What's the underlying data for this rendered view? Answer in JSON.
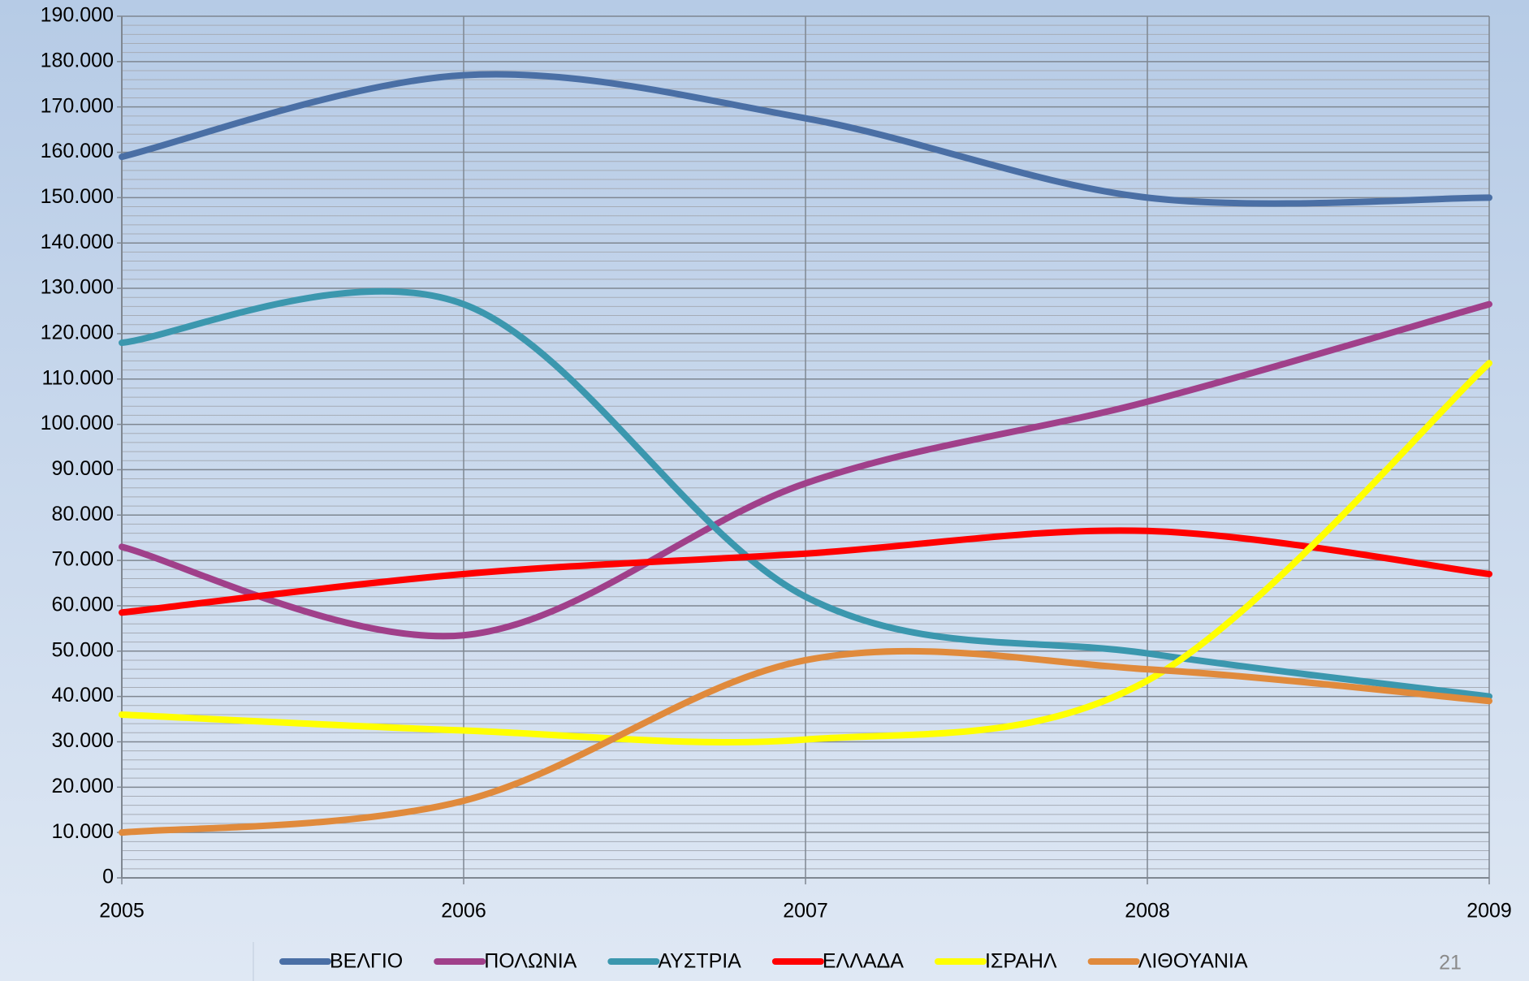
{
  "chart_data": {
    "type": "line",
    "x": [
      2005,
      2006,
      2007,
      2008,
      2009
    ],
    "xlim": [
      2005,
      2009
    ],
    "xticks": [
      2005,
      2006,
      2007,
      2008,
      2009
    ],
    "ylim": [
      0,
      190000
    ],
    "yticks": [
      0,
      {
        "value": 10000,
        "label": "10.000"
      },
      {
        "value": 20000,
        "label": "20.000"
      },
      {
        "value": 30000,
        "label": "30.000"
      },
      {
        "value": 40000,
        "label": "40.000"
      },
      {
        "value": 50000,
        "label": "50.000"
      },
      {
        "value": 60000,
        "label": "60.000"
      },
      {
        "value": 70000,
        "label": "70.000"
      },
      {
        "value": 80000,
        "label": "80.000"
      },
      {
        "value": 90000,
        "label": "90.000"
      },
      {
        "value": 100000,
        "label": "100.000"
      },
      {
        "value": 110000,
        "label": "110.000"
      },
      {
        "value": 120000,
        "label": "120.000"
      },
      {
        "value": 130000,
        "label": "130.000"
      },
      {
        "value": 140000,
        "label": "140.000"
      },
      {
        "value": 150000,
        "label": "150.000"
      },
      {
        "value": 160000,
        "label": "160.000"
      },
      {
        "value": 170000,
        "label": "170.000"
      },
      {
        "value": 180000,
        "label": "180.000"
      },
      {
        "value": 190000,
        "label": "190.000"
      }
    ],
    "grid": true,
    "smooth": true,
    "legend": "bottom",
    "series": [
      {
        "name": "ΒΕΛΓΙΟ",
        "color": "#4a6fa5",
        "values": [
          159000,
          177000,
          167500,
          150000,
          150000
        ]
      },
      {
        "name": "ΠΟΛΩΝΙΑ",
        "color": "#a0408a",
        "values": [
          73000,
          53500,
          87000,
          105000,
          126500
        ]
      },
      {
        "name": "ΑΥΣΤΡΙΑ",
        "color": "#3b97ae",
        "values": [
          118000,
          126500,
          62000,
          49500,
          40000
        ]
      },
      {
        "name": "ΕΛΛΑΔΑ",
        "color": "#ff0000",
        "values": [
          58500,
          67000,
          71500,
          76500,
          67000
        ]
      },
      {
        "name": "ΙΣΡΑΗΛ",
        "color": "#ffff00",
        "values": [
          36000,
          32500,
          30500,
          43500,
          113500
        ]
      },
      {
        "name": "ΛΙΘΟΥΑΝΙΑ",
        "color": "#e08a3c",
        "values": [
          10000,
          17000,
          48000,
          46000,
          39000
        ]
      }
    ]
  },
  "page_number": "21"
}
